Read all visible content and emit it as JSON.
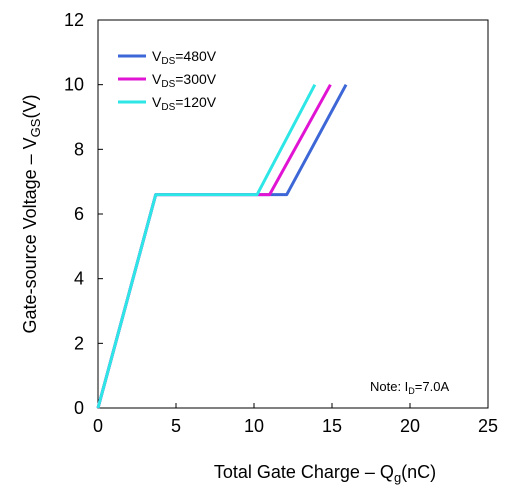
{
  "chart_data": {
    "type": "line",
    "xlabel": "Total Gate Charge – Q",
    "xlabel_sub": "g",
    "xlabel_unit": "(nC)",
    "ylabel": "Gate-source Voltage – V",
    "ylabel_sub": "GS",
    "ylabel_unit": "(V)",
    "xlim": [
      0,
      25
    ],
    "ylim": [
      0,
      12
    ],
    "x_ticks": [
      "0",
      "5",
      "10",
      "15",
      "20",
      "25"
    ],
    "y_ticks": [
      "0",
      "2",
      "4",
      "6",
      "8",
      "10",
      "12"
    ],
    "grid": false,
    "legend_position": "top-left",
    "annotation": {
      "text": "Note:  I",
      "sub": "D",
      "rest": "=7.0A",
      "position": "bottom-right"
    },
    "series": [
      {
        "name": "V",
        "name_sub": "DS",
        "name_rest": "=480V",
        "color": "#3d67d6",
        "points": [
          [
            0,
            0
          ],
          [
            3.7,
            6.6
          ],
          [
            12.1,
            6.6
          ],
          [
            15.9,
            10.0
          ]
        ]
      },
      {
        "name": "V",
        "name_sub": "DS",
        "name_rest": "=300V",
        "color": "#e014d2",
        "points": [
          [
            0,
            0
          ],
          [
            3.7,
            6.6
          ],
          [
            11.0,
            6.6
          ],
          [
            14.9,
            10.0
          ]
        ]
      },
      {
        "name": "V",
        "name_sub": "DS",
        "name_rest": "=120V",
        "color": "#2de6e6",
        "points": [
          [
            0,
            0
          ],
          [
            3.7,
            6.6
          ],
          [
            10.2,
            6.6
          ],
          [
            13.9,
            10.0
          ]
        ]
      }
    ]
  }
}
